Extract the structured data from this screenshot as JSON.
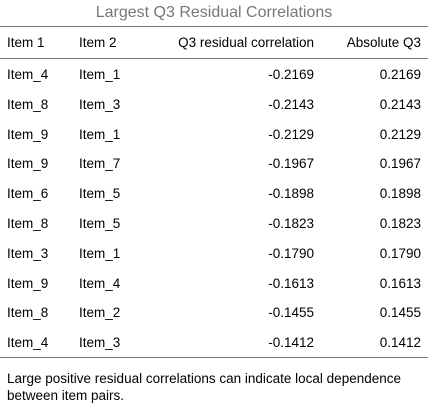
{
  "title": "Largest Q3 Residual Correlations",
  "table": {
    "header": [
      "Item 1",
      "Item 2",
      "Q3 residual correlation",
      "Absolute Q3"
    ],
    "rows": [
      [
        "Item_4",
        "Item_1",
        "-0.2169",
        "0.2169"
      ],
      [
        "Item_8",
        "Item_3",
        "-0.2143",
        "0.2143"
      ],
      [
        "Item_9",
        "Item_1",
        "-0.2129",
        "0.2129"
      ],
      [
        "Item_9",
        "Item_7",
        "-0.1967",
        "0.1967"
      ],
      [
        "Item_6",
        "Item_5",
        "-0.1898",
        "0.1898"
      ],
      [
        "Item_8",
        "Item_5",
        "-0.1823",
        "0.1823"
      ],
      [
        "Item_3",
        "Item_1",
        "-0.1790",
        "0.1790"
      ],
      [
        "Item_9",
        "Item_4",
        "-0.1613",
        "0.1613"
      ],
      [
        "Item_8",
        "Item_2",
        "-0.1455",
        "0.1455"
      ],
      [
        "Item_4",
        "Item_3",
        "-0.1412",
        "0.1412"
      ]
    ]
  },
  "footnote": "Large positive residual correlations can indicate local dependence between item pairs."
}
